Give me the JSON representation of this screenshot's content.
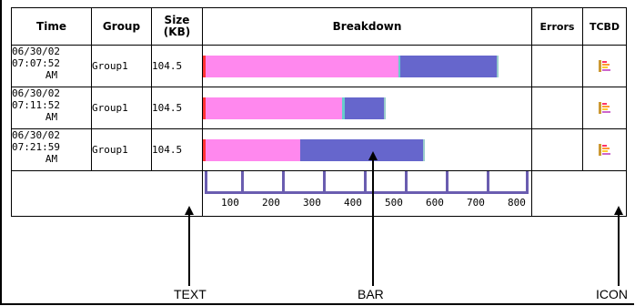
{
  "table": {
    "headers": {
      "time": "Time",
      "group": "Group",
      "size": "Size\n(KB)",
      "breakdown": "Breakdown",
      "errors": "Errors",
      "tcbd": "TCBD"
    },
    "rows": [
      {
        "date": "06/30/02",
        "clock": "07:07:52",
        "ampm": "AM",
        "group": "Group1",
        "size": "104.5"
      },
      {
        "date": "06/30/02",
        "clock": "07:11:52",
        "ampm": "AM",
        "group": "Group1",
        "size": "104.5"
      },
      {
        "date": "06/30/02",
        "clock": "07:21:59",
        "ampm": "AM",
        "group": "Group1",
        "size": "104.5"
      }
    ],
    "axis_ticks": [
      "100",
      "200",
      "300",
      "400",
      "500",
      "600",
      "700",
      "800"
    ]
  },
  "callouts": {
    "text": "TEXT",
    "bar": "BAR",
    "icon": "ICON"
  },
  "colors": {
    "pink": "#ff88ee",
    "blue": "#6666cc",
    "red": "#ff3333",
    "cyan": "#66cccc",
    "axis": "#6a5db0"
  }
}
